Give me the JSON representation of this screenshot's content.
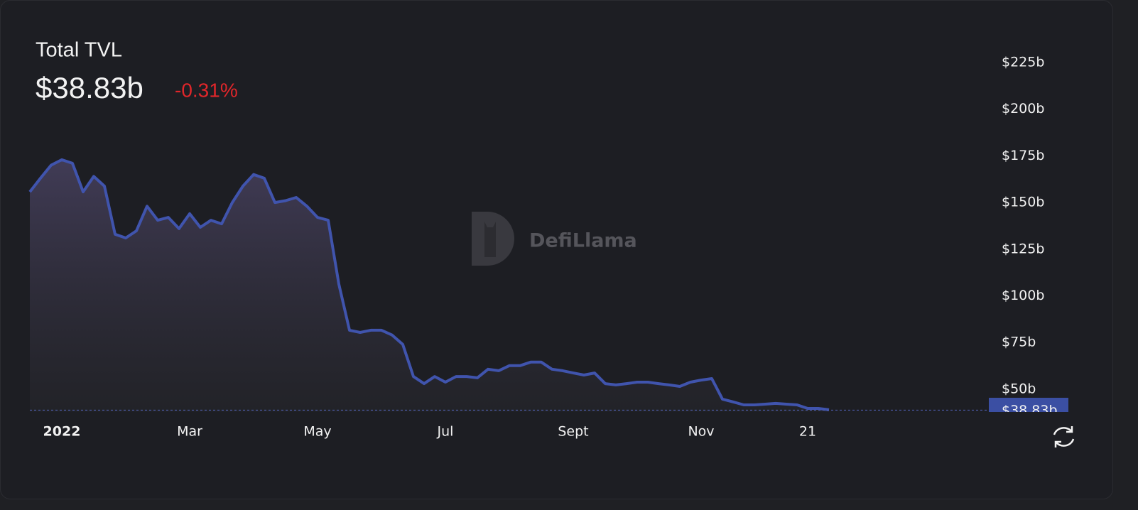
{
  "chart_data": {
    "type": "area",
    "title": "Total TVL",
    "current_value": {
      "value": 38.83,
      "label": "$38.83b"
    },
    "change": "-0.31%",
    "watermark": "DefiLlama",
    "categories": [
      null,
      null,
      null,
      "2022",
      null,
      null,
      null,
      null,
      null,
      null,
      null,
      null,
      null,
      null,
      null,
      "Mar",
      null,
      null,
      null,
      null,
      null,
      null,
      null,
      null,
      null,
      null,
      null,
      "May",
      null,
      null,
      null,
      null,
      null,
      null,
      null,
      null,
      null,
      null,
      null,
      "Jul",
      null,
      null,
      null,
      null,
      null,
      null,
      null,
      null,
      null,
      null,
      null,
      "Sept",
      null,
      null,
      null,
      null,
      null,
      null,
      null,
      null,
      null,
      null,
      null,
      "Nov",
      null,
      null,
      null,
      null,
      null,
      null,
      null,
      null,
      null,
      "21",
      null,
      null
    ],
    "series": [
      {
        "color": "#4054ad",
        "values": [
          155.7,
          163,
          170,
          172.9,
          171,
          155.7,
          164,
          158.8,
          133,
          131,
          134.8,
          148,
          140.5,
          142,
          136,
          144,
          136.7,
          140.5,
          138.6,
          150,
          158.8,
          165,
          163,
          150,
          151,
          152.7,
          148,
          142,
          140.5,
          106.3,
          81.6,
          80.4,
          81.6,
          81.6,
          79,
          74,
          56.8,
          53,
          56.8,
          53.8,
          56.8,
          56.8,
          56.1,
          60.7,
          59.9,
          62.6,
          62.6,
          64.5,
          64.5,
          60.7,
          59.9,
          58.7,
          57.6,
          58.7,
          53,
          52.3,
          53,
          53.8,
          53.8,
          53,
          52.3,
          51.5,
          53.8,
          54.9,
          55.7,
          44.7,
          43.2,
          41.6,
          41.6,
          42,
          42.4,
          42,
          41.6,
          39.7,
          39.7,
          39
        ]
      }
    ],
    "ylim": [
      38,
      240
    ],
    "yticks": [
      {
        "value": 50,
        "label": "$50b"
      },
      {
        "value": 75,
        "label": "$75b"
      },
      {
        "value": 100,
        "label": "$100b"
      },
      {
        "value": 125,
        "label": "$125b"
      },
      {
        "value": 150,
        "label": "$150b"
      },
      {
        "value": 175,
        "label": "$175b"
      },
      {
        "value": 200,
        "label": "$200b"
      },
      {
        "value": 225,
        "label": "$225b"
      }
    ],
    "grid": false
  }
}
